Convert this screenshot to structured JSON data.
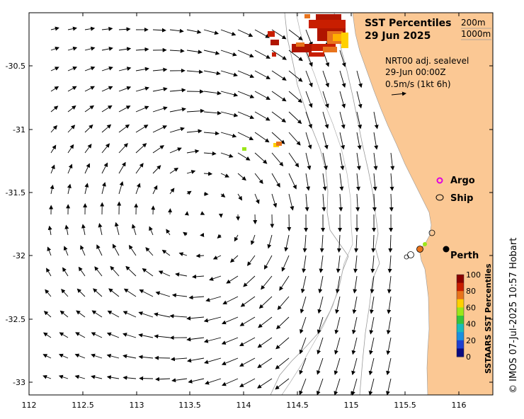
{
  "title": {
    "line1": "SST Percentiles",
    "line2": "29 Jun 2025"
  },
  "contour_legend": {
    "c200": "200m",
    "c1000": "1000m"
  },
  "current_info": {
    "line1": "NRT00 adj. sealevel",
    "line2": "29-Jun 00:00Z",
    "line3": "0.5m/s (1kt 6h)"
  },
  "markers": {
    "argo": "Argo",
    "ship": "Ship",
    "perth": "Perth"
  },
  "colorbar": {
    "label": "SSTAARS SST Percentiles",
    "ticks": [
      "100",
      "80",
      "60",
      "40",
      "20",
      "0"
    ],
    "colors": [
      "#8b0000",
      "#c81e00",
      "#e8731c",
      "#ffd000",
      "#9be619",
      "#35c53a",
      "#18bbbb",
      "#1a8fe0",
      "#1e3fd0",
      "#0a0a80"
    ]
  },
  "credit": "© IMOS 07-Jul-2025 10:57 Hobart",
  "axes": {
    "x_ticks": [
      "112",
      "112.5",
      "113",
      "113.5",
      "114",
      "114.5",
      "115",
      "115.5",
      "116"
    ],
    "y_ticks": [
      "-30.5",
      "-31",
      "-31.5",
      "-32",
      "-32.5",
      "-33"
    ]
  },
  "map_data": {
    "lon_range": [
      112.0,
      116.3
    ],
    "lat_range": [
      -33.1,
      -30.1
    ],
    "eddy_center": [
      113.8,
      -31.75
    ]
  }
}
